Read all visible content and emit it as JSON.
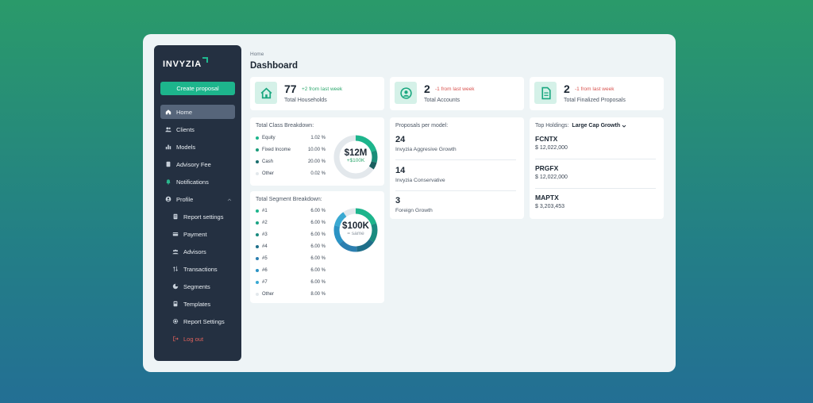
{
  "app": {
    "logo_text": "INVYZIA",
    "brand_color": "#1db58c"
  },
  "sidebar": {
    "create_label": "Create proposal",
    "items": [
      {
        "label": "Home",
        "icon": "home-icon",
        "active": true
      },
      {
        "label": "Clients",
        "icon": "users-icon"
      },
      {
        "label": "Models",
        "icon": "bar-chart-icon"
      },
      {
        "label": "Advisory Fee",
        "icon": "document-icon"
      },
      {
        "label": "Notifications",
        "icon": "bell-icon"
      },
      {
        "label": "Profile",
        "icon": "user-circle-icon"
      },
      {
        "label": "Report settings",
        "icon": "report-icon"
      },
      {
        "label": "Payment",
        "icon": "card-icon"
      },
      {
        "label": "Advisors",
        "icon": "advisors-icon"
      },
      {
        "label": "Transactions",
        "icon": "arrows-icon"
      },
      {
        "label": "Segments",
        "icon": "pie-icon"
      },
      {
        "label": "Templates",
        "icon": "template-icon"
      },
      {
        "label": "Report Settings",
        "icon": "gear-icon"
      },
      {
        "label": "Log out",
        "icon": "logout-icon"
      }
    ]
  },
  "header": {
    "breadcrumb": "Home",
    "title": "Dashboard"
  },
  "stats": [
    {
      "value": "77",
      "delta": "+2 from last week",
      "label": "Total Households",
      "icon": "house-icon"
    },
    {
      "value": "2",
      "delta": "-1 from last week",
      "label": "Total Accounts",
      "icon": "account-icon"
    },
    {
      "value": "2",
      "delta": "-1 from last week",
      "label": "Total Finalized Proposals",
      "icon": "file-icon"
    }
  ],
  "class_breakdown": {
    "title": "Total Class Breakdown:",
    "total": "$12M",
    "change": "+$100K",
    "rows": [
      {
        "label": "Equity",
        "value": "1.02 %",
        "color": "#1db58c"
      },
      {
        "label": "Fixed Income",
        "value": "10.00 %",
        "color": "#1a9c7a"
      },
      {
        "label": "Cash",
        "value": "20.00 %",
        "color": "#1a6e6e"
      },
      {
        "label": "Other",
        "value": "0.02 %",
        "color": "#e3e8ec"
      }
    ]
  },
  "segment_breakdown": {
    "title": "Total Segment Breakdown:",
    "total": "$100K",
    "change": "= same",
    "rows": [
      {
        "label": "#1",
        "value": "6.00 %",
        "color": "#1db58c"
      },
      {
        "label": "#2",
        "value": "6.00 %",
        "color": "#1aa384"
      },
      {
        "label": "#3",
        "value": "6.00 %",
        "color": "#1a8b7f"
      },
      {
        "label": "#4",
        "value": "6.00 %",
        "color": "#1f6f8a"
      },
      {
        "label": "#5",
        "value": "6.00 %",
        "color": "#2c7fb0"
      },
      {
        "label": "#6",
        "value": "6.00 %",
        "color": "#2b93c4"
      },
      {
        "label": "#7",
        "value": "6.00 %",
        "color": "#3aa9d2"
      },
      {
        "label": "Other",
        "value": "8.00 %",
        "color": "#e3e8ec"
      }
    ]
  },
  "proposals": {
    "title": "Proposals per model:",
    "items": [
      {
        "count": "24",
        "name": "Invyzia Aggresive Growth"
      },
      {
        "count": "14",
        "name": "Invyzia Conservative"
      },
      {
        "count": "3",
        "name": "Foreign Growth"
      }
    ]
  },
  "holdings": {
    "title": "Top Holdings:",
    "selected": "Large Cap Growth",
    "items": [
      {
        "ticker": "FCNTX",
        "value": "$ 12,022,000"
      },
      {
        "ticker": "PRGFX",
        "value": "$ 12,022,000"
      },
      {
        "ticker": "MAPTX",
        "value": "$ 3,203,453"
      }
    ]
  }
}
